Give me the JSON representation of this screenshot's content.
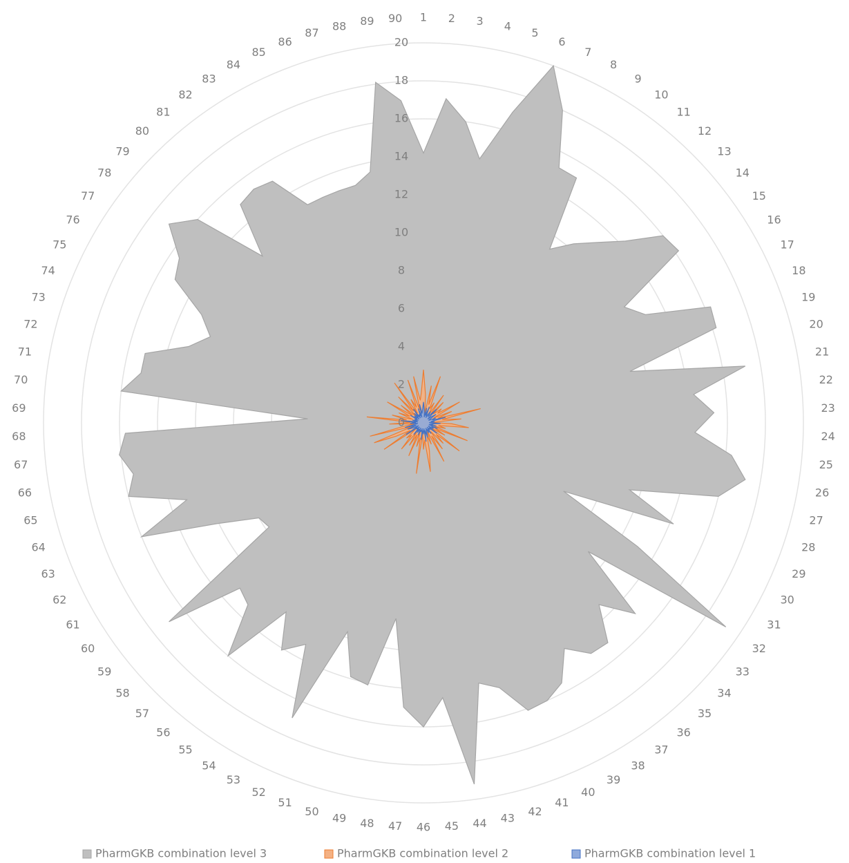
{
  "chart_data": {
    "type": "radar",
    "categories": [
      "1",
      "2",
      "3",
      "4",
      "5",
      "6",
      "7",
      "8",
      "9",
      "10",
      "11",
      "12",
      "13",
      "14",
      "15",
      "16",
      "17",
      "18",
      "19",
      "20",
      "21",
      "22",
      "23",
      "24",
      "25",
      "26",
      "27",
      "28",
      "29",
      "30",
      "31",
      "32",
      "33",
      "34",
      "35",
      "36",
      "37",
      "38",
      "39",
      "40",
      "41",
      "42",
      "43",
      "44",
      "45",
      "46",
      "47",
      "48",
      "49",
      "50",
      "51",
      "52",
      "53",
      "54",
      "55",
      "56",
      "57",
      "58",
      "59",
      "60",
      "61",
      "62",
      "63",
      "64",
      "65",
      "66",
      "67",
      "68",
      "69",
      "70",
      "71",
      "72",
      "73",
      "74",
      "75",
      "76",
      "77",
      "78",
      "79",
      "80",
      "81",
      "82",
      "83",
      "84",
      "85",
      "86",
      "87",
      "88",
      "89",
      "90"
    ],
    "ylim": [
      0,
      20
    ],
    "yticks": [
      0,
      2,
      4,
      6,
      8,
      10,
      12,
      14,
      16,
      18,
      20
    ],
    "grid": true,
    "legend": "bottom",
    "series": [
      {
        "name": "PharmGKB combination level 3",
        "color": "#bfbfbf",
        "stroke": "#a5a5a5",
        "values": [
          14.2,
          17.1,
          16,
          14.2,
          17,
          20,
          18,
          15.2,
          15.2,
          11.3,
          12.3,
          13.2,
          14.3,
          16,
          16.2,
          12.2,
          13,
          16.3,
          16.2,
          11.2,
          17.2,
          14.3,
          15.3,
          14.3,
          16.3,
          17.2,
          16,
          11.4,
          14.2,
          8.2,
          13,
          19.2,
          11,
          15,
          13.3,
          15.1,
          15,
          14,
          15.5,
          16,
          16.1,
          14.5,
          14,
          19.2,
          14.5,
          16,
          15,
          10.4,
          14.1,
          13.9,
          11.7,
          17,
          13.2,
          14.1,
          12.3,
          16,
          13.3,
          13,
          17,
          9.8,
          10,
          12.1,
          16,
          13.1,
          16,
          15.5,
          16.1,
          15.7,
          6.1,
          16,
          15.1,
          15.1,
          13,
          12.1,
          13,
          15.1,
          15.5,
          17,
          16,
          12.2,
          15,
          15.2,
          15,
          13,
          13,
          13,
          13,
          13.5,
          18.1,
          17
        ]
      },
      {
        "name": "PharmGKB combination level 2",
        "color": "#f4b183",
        "stroke": "#ed7d31",
        "values": [
          2.8,
          1.5,
          0.5,
          2,
          1,
          2.6,
          0.8,
          1.2,
          0.5,
          1.8,
          0.6,
          1.5,
          0.7,
          1.2,
          0.9,
          2.2,
          0.6,
          1.6,
          0.8,
          3.1,
          1,
          2,
          0.5,
          1.5,
          2.4,
          0.8,
          1.2,
          0.6,
          2.5,
          0.7,
          1.3,
          0.5,
          2.4,
          0.9,
          1.5,
          0.6,
          1.7,
          0.8,
          2.3,
          0.5,
          1.2,
          0.7,
          1.5,
          2.6,
          0.9,
          1.4,
          0.6,
          2.7,
          0.8,
          1.3,
          0.5,
          1.9,
          0.7,
          1.4,
          0.6,
          1.8,
          0.9,
          1.2,
          0.5,
          2.5,
          0.8,
          1.6,
          2.8,
          0.6,
          2.9,
          1.1,
          0.5,
          1.8,
          0.7,
          3,
          0.9,
          1.7,
          0.6,
          1.4,
          0.8,
          2.2,
          0.7,
          1.5,
          0.5,
          1.9,
          0.8,
          2.6,
          0.6,
          1.4,
          0.9,
          2.4,
          0.7,
          2.5,
          1.2,
          1.6
        ]
      },
      {
        "name": "PharmGKB combination level 1",
        "color": "#8faadc",
        "stroke": "#4472c4",
        "values": [
          1.1,
          0.6,
          0.3,
          0.8,
          0.4,
          0.9,
          0.3,
          0.5,
          0.7,
          0.4,
          0.6,
          1,
          0.3,
          0.5,
          0.8,
          0.4,
          0.3,
          0.7,
          0.5,
          1.2,
          0.4,
          0.6,
          0.3,
          0.9,
          0.5,
          0.4,
          0.7,
          0.3,
          0.8,
          0.5,
          0.6,
          0.3,
          0.9,
          0.4,
          0.5,
          0.3,
          0.7,
          0.4,
          0.6,
          0.3,
          0.5,
          0.8,
          0.4,
          1,
          0.3,
          0.6,
          0.4,
          0.9,
          0.3,
          0.5,
          0.4,
          0.7,
          0.3,
          0.6,
          0.4,
          0.8,
          0.3,
          0.5,
          0.4,
          1.1,
          0.3,
          0.6,
          0.9,
          0.4,
          1,
          0.5,
          0.3,
          0.7,
          0.4,
          1.2,
          0.3,
          0.6,
          0.4,
          0.5,
          0.3,
          0.8,
          0.4,
          0.6,
          0.3,
          0.7,
          0.4,
          0.9,
          0.3,
          0.5,
          0.4,
          0.8,
          0.3,
          1,
          0.5,
          0.7
        ]
      }
    ]
  }
}
